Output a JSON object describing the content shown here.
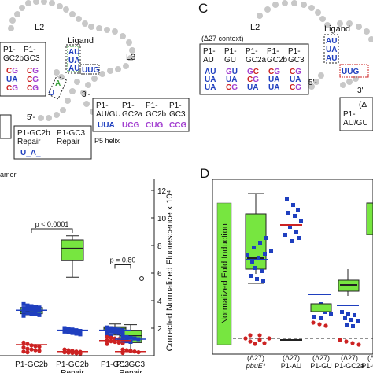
{
  "panel_c": {
    "letter": "C",
    "loop_l2": "L2",
    "ligand": "Ligand",
    "context": "(Δ27 context)",
    "columns": [
      "P1-\nAU",
      "P1-\nGU",
      "P1-\nGC2a",
      "P1-\nGC2b",
      "P1-\nGC3"
    ],
    "five_prime": "5'-",
    "three_prime": "3'",
    "corner_label": "P1-\nAU/GU",
    "delta_label": "(Δ"
  },
  "panel_b": {
    "loop_l2": "L2",
    "loop_l3": "L3",
    "ligand": "Ligand",
    "five_prime": "5'-",
    "three_prime": "3'-",
    "top_box": [
      "P1-\nGC2b",
      "P1-\nGC3"
    ],
    "right_box": [
      "P1-\nAU/GU",
      "P1-\nGC2a",
      "P1-\nGC2b",
      "P1-\nGC3"
    ],
    "right_box_seqs": [
      "UUA",
      "UCG",
      "CUG",
      "CCG"
    ],
    "repair_box": [
      "P1-GC2b\nRepair",
      "P1-GC3\nRepair"
    ],
    "repair_seq": "U_A_",
    "helix": "P5 helix",
    "cut_text": "amer"
  },
  "panel_d": {
    "letter": "D",
    "ylabel": "Normalized Fold Induction",
    "categories": [
      "(Δ27)\npbuE*",
      "(Δ27)\nP1-AU",
      "(Δ27)\nP1-GU",
      "(Δ27)\nP1-GC2a",
      "(Δ27)\nP1-GC2b"
    ]
  },
  "chart_data": {
    "type": "box",
    "title": "",
    "xlabel": "",
    "ylabel": "Corrected Normalized Fluorescence x 10⁴",
    "ylim": [
      0,
      12
    ],
    "yticks": [
      2,
      4,
      6,
      8,
      10,
      12
    ],
    "categories": [
      "P1-GC2b",
      "P1-GC2b\nRepair",
      "P1-GC3",
      "P1-GC3\nRepair"
    ],
    "boxes": [
      {
        "category": "P1-GC2b",
        "whisker_low": 2.9,
        "q1": 3.05,
        "median": 3.25,
        "q3": 3.5,
        "whisker_high": 3.65
      },
      {
        "category": "P1-GC2b\nRepair",
        "whisker_low": 5.7,
        "q1": 6.9,
        "median": 7.8,
        "q3": 8.4,
        "whisker_high": 8.7
      },
      {
        "category": "P1-GC3",
        "whisker_low": 1.5,
        "q1": 1.8,
        "median": 2.0,
        "q3": 2.1,
        "whisker_high": 2.3
      },
      {
        "category": "P1-GC3\nRepair",
        "whisker_low": 0.3,
        "q1": 0.95,
        "median": 1.45,
        "q3": 1.85,
        "whisker_high": 2.25
      }
    ],
    "annotations": [
      {
        "text": "p < 0.0001",
        "between": [
          "P1-GC2b",
          "P1-GC2b\nRepair"
        ],
        "y": 9.2
      },
      {
        "text": "p = 0.80",
        "between": [
          "P1-GC3",
          "P1-GC3\nRepair"
        ],
        "y": 6.6
      }
    ],
    "outliers": [
      {
        "category": "P1-GC3\nRepair",
        "y": 5.6
      }
    ],
    "points": [
      {
        "category": "P1-GC2b",
        "color": "#1f3fbf",
        "values": [
          3.75,
          3.65,
          3.6,
          3.55,
          3.5,
          3.45,
          3.4,
          3.35,
          3.3,
          3.25,
          3.2,
          3.1,
          3.05,
          3.0,
          2.95,
          2.9
        ]
      },
      {
        "category": "P1-GC2b",
        "color": "#cc2222",
        "values": [
          0.95,
          0.85,
          0.75,
          0.7,
          0.65,
          0.6,
          0.5,
          0.45,
          0.4,
          0.35,
          0.3,
          0.25
        ]
      },
      {
        "category": "P1-GC2b\nRepair",
        "color": "#1f3fbf",
        "values": [
          2.0,
          1.95,
          1.9,
          1.85,
          1.8,
          1.75,
          1.7,
          1.65,
          1.6,
          1.55
        ]
      },
      {
        "category": "P1-GC2b\nRepair",
        "color": "#cc2222",
        "values": [
          0.45,
          0.4,
          0.35,
          0.3,
          0.28,
          0.25,
          0.22,
          0.2,
          0.18,
          0.15
        ]
      },
      {
        "category": "P1-GC3",
        "color": "#1f3fbf",
        "values": [
          2.05,
          2.0,
          1.95,
          1.9,
          1.85,
          1.8,
          1.75,
          1.7,
          1.65,
          1.6,
          1.55,
          1.45
        ]
      },
      {
        "category": "P1-GC3",
        "color": "#cc2222",
        "values": [
          1.35,
          1.3,
          1.25,
          1.2,
          1.15,
          1.1,
          1.05,
          1.0,
          0.95,
          0.9,
          0.85
        ]
      },
      {
        "category": "P1-GC3\nRepair",
        "color": "#1f3fbf",
        "values": [
          1.4,
          1.35,
          1.3,
          1.25,
          1.2,
          1.1,
          1.05,
          1.0
        ]
      },
      {
        "category": "P1-GC3\nRepair",
        "color": "#cc2222",
        "values": [
          0.45,
          0.4,
          0.35,
          0.3,
          0.25,
          0.2
        ]
      }
    ],
    "means": [
      {
        "category": "P1-GC2b",
        "color": "#1f3fbf",
        "y": 3.3
      },
      {
        "category": "P1-GC2b",
        "color": "#cc2222",
        "y": 0.8
      },
      {
        "category": "P1-GC2b\nRepair",
        "color": "#1f3fbf",
        "y": 1.85
      },
      {
        "category": "P1-GC2b\nRepair",
        "color": "#cc2222",
        "y": 0.3
      },
      {
        "category": "P1-GC3",
        "color": "#1f3fbf",
        "y": 1.85
      },
      {
        "category": "P1-GC3",
        "color": "#cc2222",
        "y": 1.1
      },
      {
        "category": "P1-GC3\nRepair",
        "color": "#1f3fbf",
        "y": 1.2
      },
      {
        "category": "P1-GC3\nRepair",
        "color": "#cc2222",
        "y": 0.3
      }
    ],
    "colors": {
      "box": "#77e640",
      "blue": "#1f3fbf",
      "red": "#cc2222",
      "paired": "#1f3fbf",
      "unpaired_u": "#1f3fbf",
      "purple": "#a23fd0"
    }
  }
}
